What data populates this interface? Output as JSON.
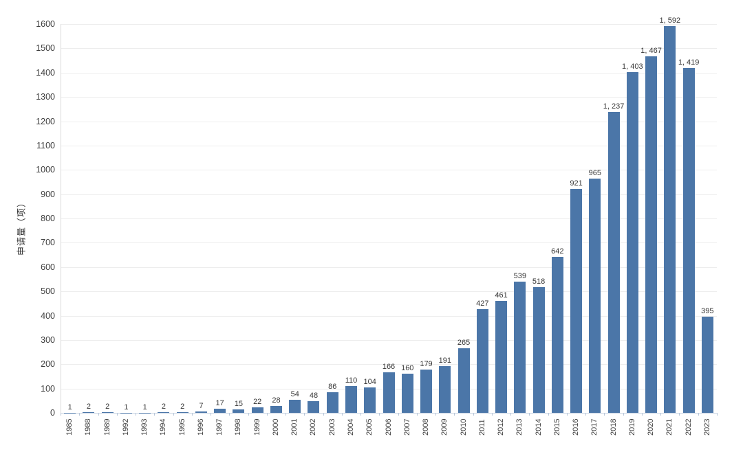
{
  "chart_data": {
    "type": "bar",
    "title": "",
    "xlabel": "",
    "ylabel": "申请量（项）",
    "ylim": [
      0,
      1600
    ],
    "ytick_interval": 100,
    "grid": true,
    "legend_position": "none",
    "categories": [
      "1985",
      "1988",
      "1989",
      "1992",
      "1993",
      "1994",
      "1995",
      "1996",
      "1997",
      "1998",
      "1999",
      "2000",
      "2001",
      "2002",
      "2003",
      "2004",
      "2005",
      "2006",
      "2007",
      "2008",
      "2009",
      "2010",
      "2011",
      "2012",
      "2013",
      "2014",
      "2015",
      "2016",
      "2017",
      "2018",
      "2019",
      "2020",
      "2021",
      "2022",
      "2023"
    ],
    "values": [
      1,
      2,
      2,
      1,
      1,
      2,
      2,
      7,
      17,
      15,
      22,
      28,
      54,
      48,
      86,
      110,
      104,
      166,
      160,
      179,
      191,
      265,
      427,
      461,
      539,
      518,
      642,
      921,
      965,
      1237,
      1403,
      1467,
      1592,
      1419,
      395
    ],
    "value_labels": [
      "1",
      "2",
      "2",
      "1",
      "1",
      "2",
      "2",
      "7",
      "17",
      "15",
      "22",
      "28",
      "54",
      "48",
      "86",
      "110",
      "104",
      "166",
      "160",
      "179",
      "191",
      "265",
      "427",
      "461",
      "539",
      "518",
      "642",
      "921",
      "965",
      "1, 237",
      "1, 403",
      "1, 467",
      "1, 592",
      "1, 419",
      "395"
    ],
    "colors": {
      "bar": "#4b76a8",
      "gridline": "#ededed",
      "y_axis_line": "#d9d9d9",
      "baseline": "#c9d4e3",
      "axis_tick": "#b9c7da",
      "tick_text": "#3d3d3d",
      "value_text": "#363636"
    }
  }
}
